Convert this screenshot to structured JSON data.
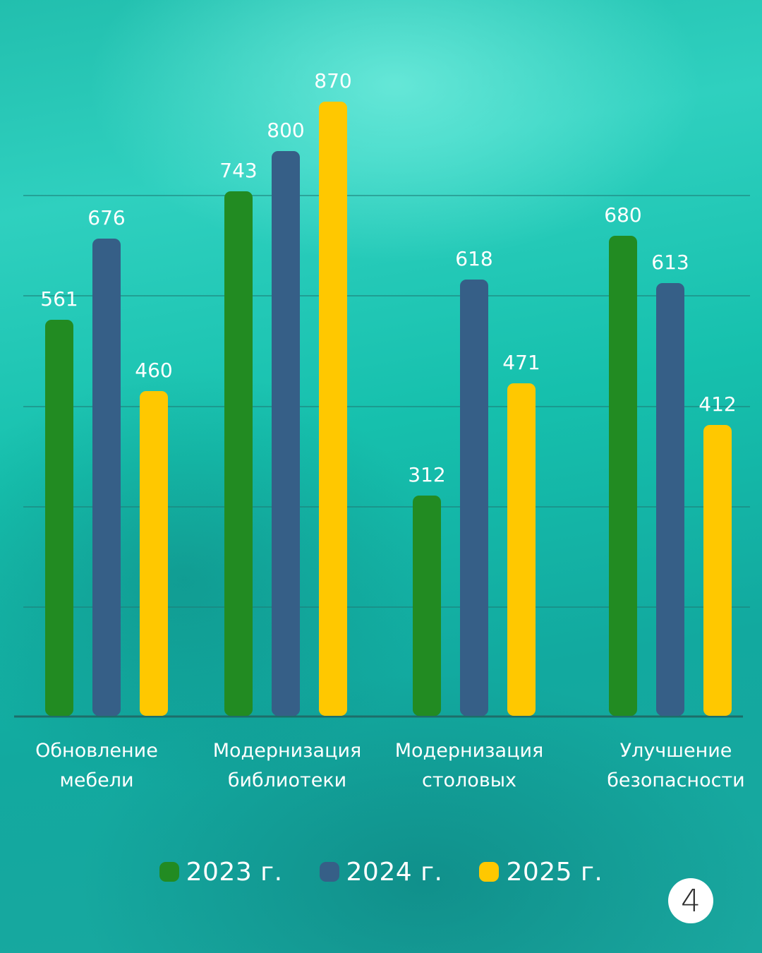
{
  "chart_data": {
    "type": "bar",
    "title": "",
    "categories": [
      [
        "Обновление",
        "мебели"
      ],
      [
        "Модернизация",
        "библиотеки"
      ],
      [
        "Модернизация",
        "столовых"
      ],
      [
        "Улучшение",
        "безопасности"
      ]
    ],
    "series": [
      {
        "name": "2023 г.",
        "color": "#228b22",
        "values": [
          561,
          743,
          312,
          680
        ]
      },
      {
        "name": "2024 г.",
        "color": "#365f87",
        "values": [
          676,
          800,
          618,
          613
        ]
      },
      {
        "name": "2025 г.",
        "color": "#ffc800",
        "values": [
          460,
          870,
          471,
          412
        ]
      }
    ],
    "ylim": [
      0,
      1000
    ],
    "grid": true,
    "legend_position": "bottom",
    "data_labels": true
  },
  "page": {
    "number": "4"
  },
  "colors": {
    "label_text": "#ffffff",
    "grid_line": "#1f7f7a",
    "axis_line": "#1d6e6a"
  }
}
